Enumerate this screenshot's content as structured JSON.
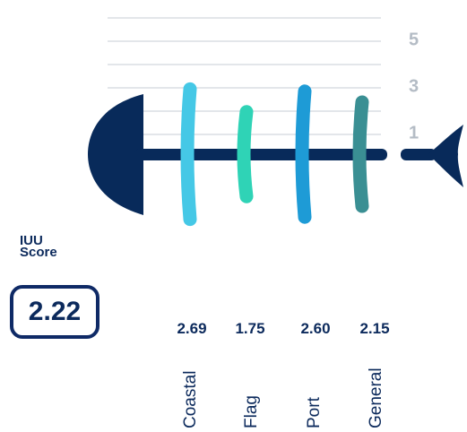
{
  "chart_data": {
    "type": "bar",
    "categories": [
      "Coastal",
      "Flag",
      "Port",
      "General"
    ],
    "values": [
      2.69,
      1.75,
      2.6,
      2.15
    ],
    "value_labels": [
      "2.69",
      "1.75",
      "2.60",
      "2.15"
    ],
    "yticks": [
      "1",
      "3",
      "5"
    ],
    "ylim": [
      0,
      6
    ],
    "colors": [
      "#45c8e6",
      "#2fd3b6",
      "#1e9bd6",
      "#3a8f93"
    ],
    "grid": true,
    "title": "",
    "xlabel": "",
    "ylabel": ""
  },
  "score": {
    "label_line1": "IUU",
    "label_line2": "Score",
    "value": "2.22"
  },
  "colors": {
    "fish": "#082a5a",
    "gridline": "#e3e6ea",
    "tick": "#b4bcc5"
  }
}
